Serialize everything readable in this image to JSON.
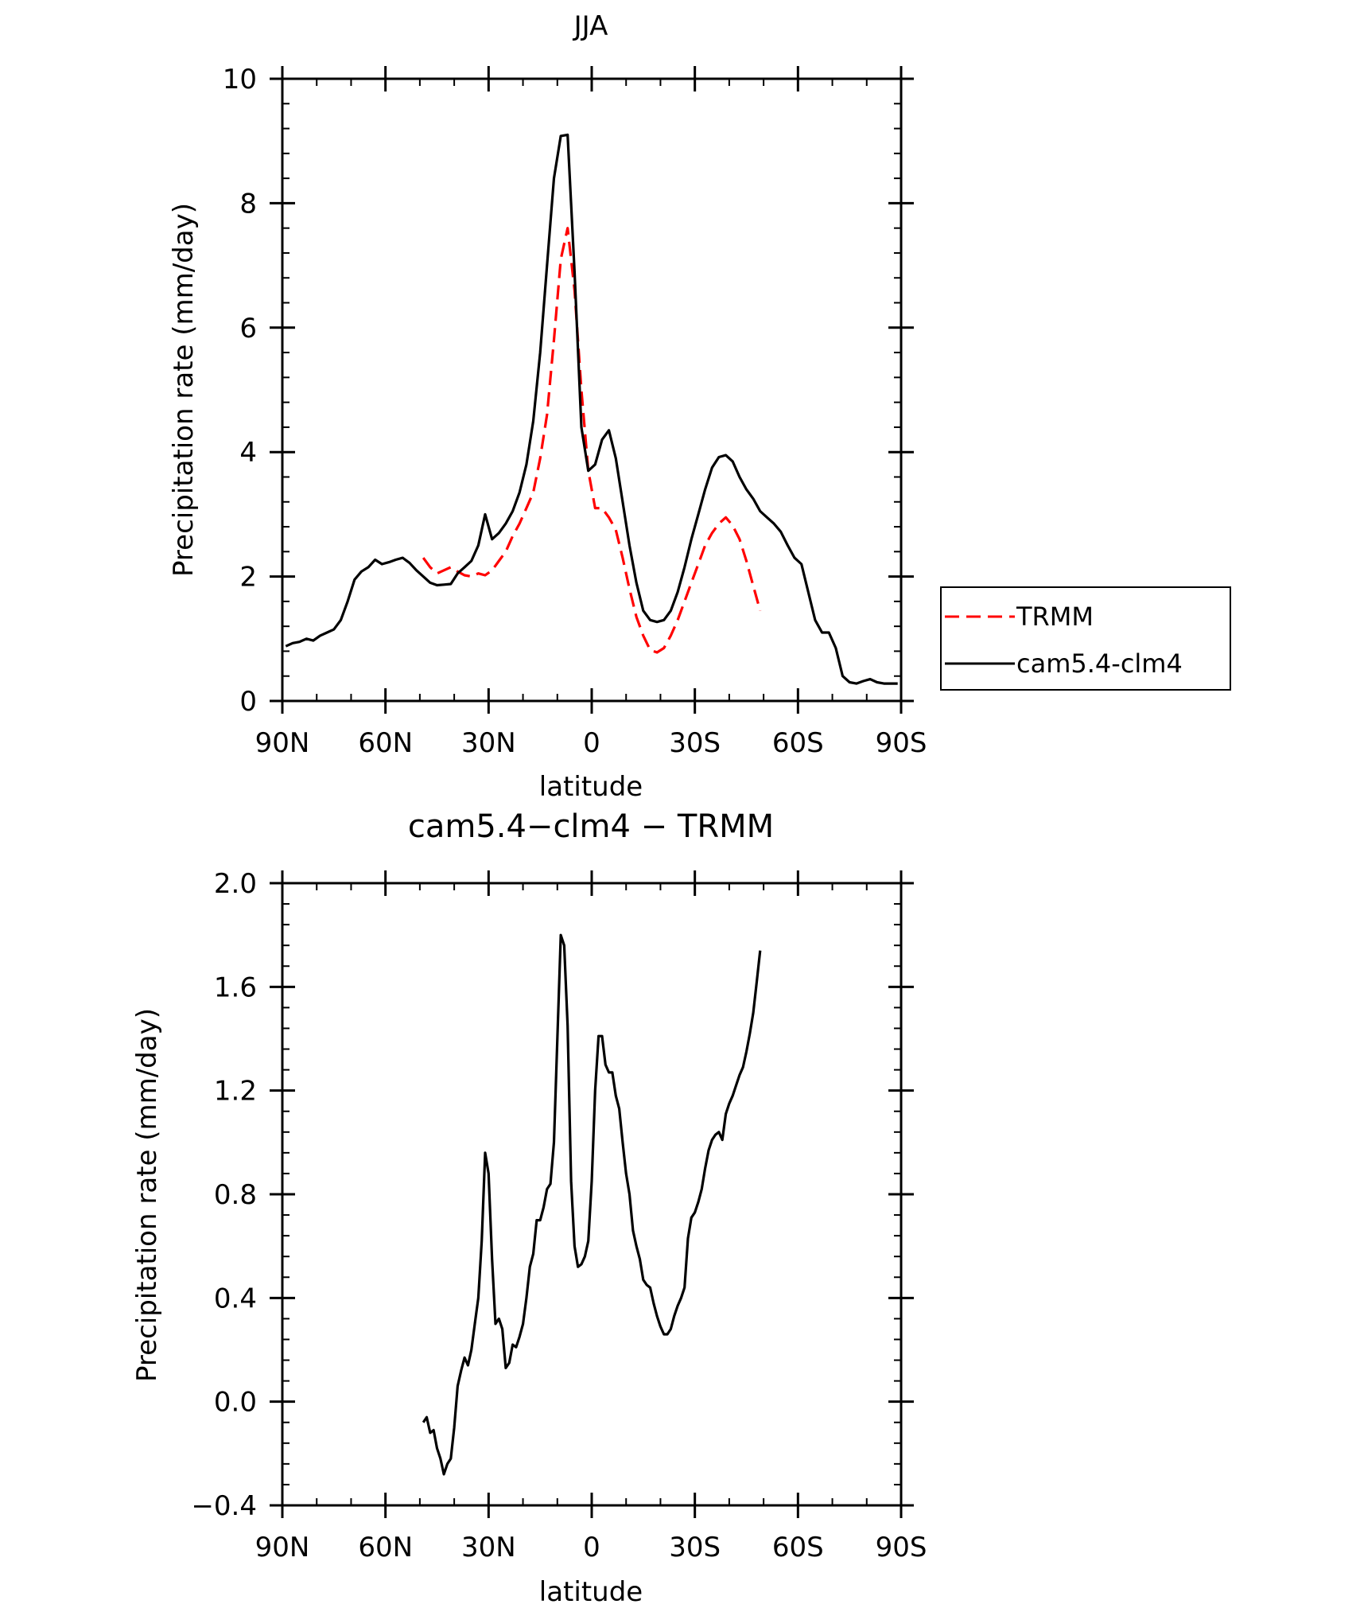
{
  "chart_data": [
    {
      "type": "line",
      "title": "JJA",
      "xlabel": "latitude",
      "ylabel": "Precipitation rate (mm/day)",
      "xlim": [
        90,
        -90
      ],
      "ylim": [
        0,
        10
      ],
      "x_tick_values": [
        90,
        60,
        30,
        0,
        -30,
        -60,
        -90
      ],
      "x_tick_labels": [
        "90N",
        "60N",
        "30N",
        "0",
        "30S",
        "60S",
        "90S"
      ],
      "y_tick_values": [
        0,
        2,
        4,
        6,
        8,
        10
      ],
      "y_tick_labels": [
        "0",
        "2",
        "4",
        "6",
        "8",
        "10"
      ],
      "grid": false,
      "legend": "right",
      "series": [
        {
          "name": "TRMM",
          "color": "#ff0000",
          "dash": "dashed",
          "x": [
            49,
            47,
            45,
            43,
            41,
            39,
            37,
            35,
            33,
            31,
            29,
            27,
            25,
            23,
            21,
            19,
            17,
            15,
            13,
            11,
            9,
            7,
            5,
            3,
            1,
            -1,
            -3,
            -5,
            -7,
            -9,
            -11,
            -13,
            -15,
            -17,
            -19,
            -21,
            -23,
            -25,
            -27,
            -29,
            -31,
            -33,
            -35,
            -37,
            -39,
            -41,
            -43,
            -45,
            -47,
            -49
          ],
          "y": [
            2.3,
            2.15,
            2.05,
            2.1,
            2.15,
            2.08,
            2.02,
            2.0,
            2.05,
            2.02,
            2.1,
            2.25,
            2.4,
            2.65,
            2.85,
            3.1,
            3.35,
            3.9,
            4.6,
            5.8,
            7.1,
            7.6,
            6.6,
            5.0,
            3.7,
            3.1,
            3.1,
            2.95,
            2.75,
            2.3,
            1.8,
            1.35,
            1.05,
            0.82,
            0.78,
            0.85,
            1.05,
            1.3,
            1.6,
            1.9,
            2.2,
            2.5,
            2.7,
            2.85,
            2.95,
            2.82,
            2.6,
            2.25,
            1.85,
            1.45
          ]
        },
        {
          "name": "cam5.4-clm4",
          "color": "#000000",
          "dash": "solid",
          "x": [
            89,
            87,
            85,
            83,
            81,
            79,
            77,
            75,
            73,
            71,
            69,
            67,
            65,
            63,
            61,
            59,
            57,
            55,
            53,
            51,
            49,
            47,
            45,
            43,
            41,
            39,
            37,
            35,
            33,
            31,
            29,
            27,
            25,
            23,
            21,
            19,
            17,
            15,
            13,
            11,
            9,
            7,
            5,
            3,
            1,
            -1,
            -3,
            -5,
            -7,
            -9,
            -11,
            -13,
            -15,
            -17,
            -19,
            -21,
            -23,
            -25,
            -27,
            -29,
            -31,
            -33,
            -35,
            -37,
            -39,
            -41,
            -43,
            -45,
            -47,
            -49,
            -51,
            -53,
            -55,
            -57,
            -59,
            -61,
            -63,
            -65,
            -67,
            -69,
            -71,
            -73,
            -75,
            -77,
            -79,
            -81,
            -83,
            -85,
            -87,
            -89
          ],
          "y": [
            0.88,
            0.93,
            0.95,
            1.0,
            0.97,
            1.05,
            1.1,
            1.15,
            1.3,
            1.6,
            1.95,
            2.08,
            2.15,
            2.27,
            2.2,
            2.23,
            2.27,
            2.3,
            2.22,
            2.1,
            2.0,
            1.9,
            1.86,
            1.87,
            1.88,
            2.05,
            2.15,
            2.25,
            2.5,
            3.0,
            2.6,
            2.7,
            2.85,
            3.05,
            3.35,
            3.8,
            4.5,
            5.6,
            7.0,
            8.4,
            9.08,
            9.1,
            6.9,
            4.4,
            3.7,
            3.8,
            4.2,
            4.35,
            3.9,
            3.2,
            2.5,
            1.9,
            1.45,
            1.3,
            1.27,
            1.3,
            1.45,
            1.75,
            2.15,
            2.6,
            3.0,
            3.4,
            3.75,
            3.92,
            3.95,
            3.85,
            3.6,
            3.4,
            3.25,
            3.05,
            2.95,
            2.85,
            2.72,
            2.5,
            2.3,
            2.2,
            1.75,
            1.3,
            1.1,
            1.1,
            0.85,
            0.4,
            0.3,
            0.28,
            0.32,
            0.35,
            0.3,
            0.28,
            0.28,
            0.28
          ]
        }
      ]
    },
    {
      "type": "line",
      "title": "cam5.4−clm4 − TRMM",
      "xlabel": "latitude",
      "ylabel": "Precipitation rate (mm/day)",
      "xlim": [
        90,
        -90
      ],
      "ylim": [
        -0.4,
        2.0
      ],
      "x_tick_values": [
        90,
        60,
        30,
        0,
        -30,
        -60,
        -90
      ],
      "x_tick_labels": [
        "90N",
        "60N",
        "30N",
        "0",
        "30S",
        "60S",
        "90S"
      ],
      "y_tick_values": [
        -0.4,
        0.0,
        0.4,
        0.8,
        1.2,
        1.6,
        2.0
      ],
      "y_tick_labels": [
        "−0.4",
        "0.0",
        "0.4",
        "0.8",
        "1.2",
        "1.6",
        "2.0"
      ],
      "grid": false,
      "series": [
        {
          "color": "#000000",
          "dash": "solid",
          "x": [
            49,
            48,
            47,
            46,
            45,
            44,
            43,
            42,
            41,
            40,
            39,
            38,
            37,
            36,
            35,
            34,
            33,
            32,
            31,
            30,
            29,
            28,
            27,
            26,
            25,
            24,
            23,
            22,
            21,
            20,
            19,
            18,
            17,
            16,
            15,
            14,
            13,
            12,
            11,
            10,
            9,
            8,
            7,
            6,
            5,
            4,
            3,
            2,
            1,
            0,
            -1,
            -2,
            -3,
            -4,
            -5,
            -6,
            -7,
            -8,
            -9,
            -10,
            -11,
            -12,
            -13,
            -14,
            -15,
            -16,
            -17,
            -18,
            -19,
            -20,
            -21,
            -22,
            -23,
            -24,
            -25,
            -26,
            -27,
            -28,
            -29,
            -30,
            -31,
            -32,
            -33,
            -34,
            -35,
            -36,
            -37,
            -38,
            -39,
            -40,
            -41,
            -42,
            -43,
            -44,
            -45,
            -46,
            -47,
            -48,
            -49
          ],
          "y": [
            -0.08,
            -0.06,
            -0.12,
            -0.11,
            -0.18,
            -0.22,
            -0.28,
            -0.24,
            -0.22,
            -0.1,
            0.06,
            0.12,
            0.17,
            0.14,
            0.2,
            0.3,
            0.4,
            0.62,
            0.96,
            0.88,
            0.55,
            0.3,
            0.32,
            0.28,
            0.13,
            0.15,
            0.22,
            0.21,
            0.25,
            0.3,
            0.4,
            0.52,
            0.57,
            0.7,
            0.7,
            0.75,
            0.82,
            0.84,
            1.0,
            1.4,
            1.8,
            1.76,
            1.45,
            0.85,
            0.6,
            0.52,
            0.53,
            0.56,
            0.62,
            0.85,
            1.2,
            1.41,
            1.41,
            1.3,
            1.27,
            1.27,
            1.18,
            1.13,
            1.0,
            0.88,
            0.8,
            0.66,
            0.6,
            0.55,
            0.47,
            0.45,
            0.44,
            0.38,
            0.33,
            0.29,
            0.26,
            0.26,
            0.28,
            0.33,
            0.37,
            0.4,
            0.44,
            0.63,
            0.71,
            0.73,
            0.77,
            0.82,
            0.9,
            0.97,
            1.01,
            1.03,
            1.04,
            1.01,
            1.11,
            1.15,
            1.18,
            1.22,
            1.26,
            1.29,
            1.35,
            1.42,
            1.5,
            1.62,
            1.74
          ]
        }
      ]
    }
  ]
}
